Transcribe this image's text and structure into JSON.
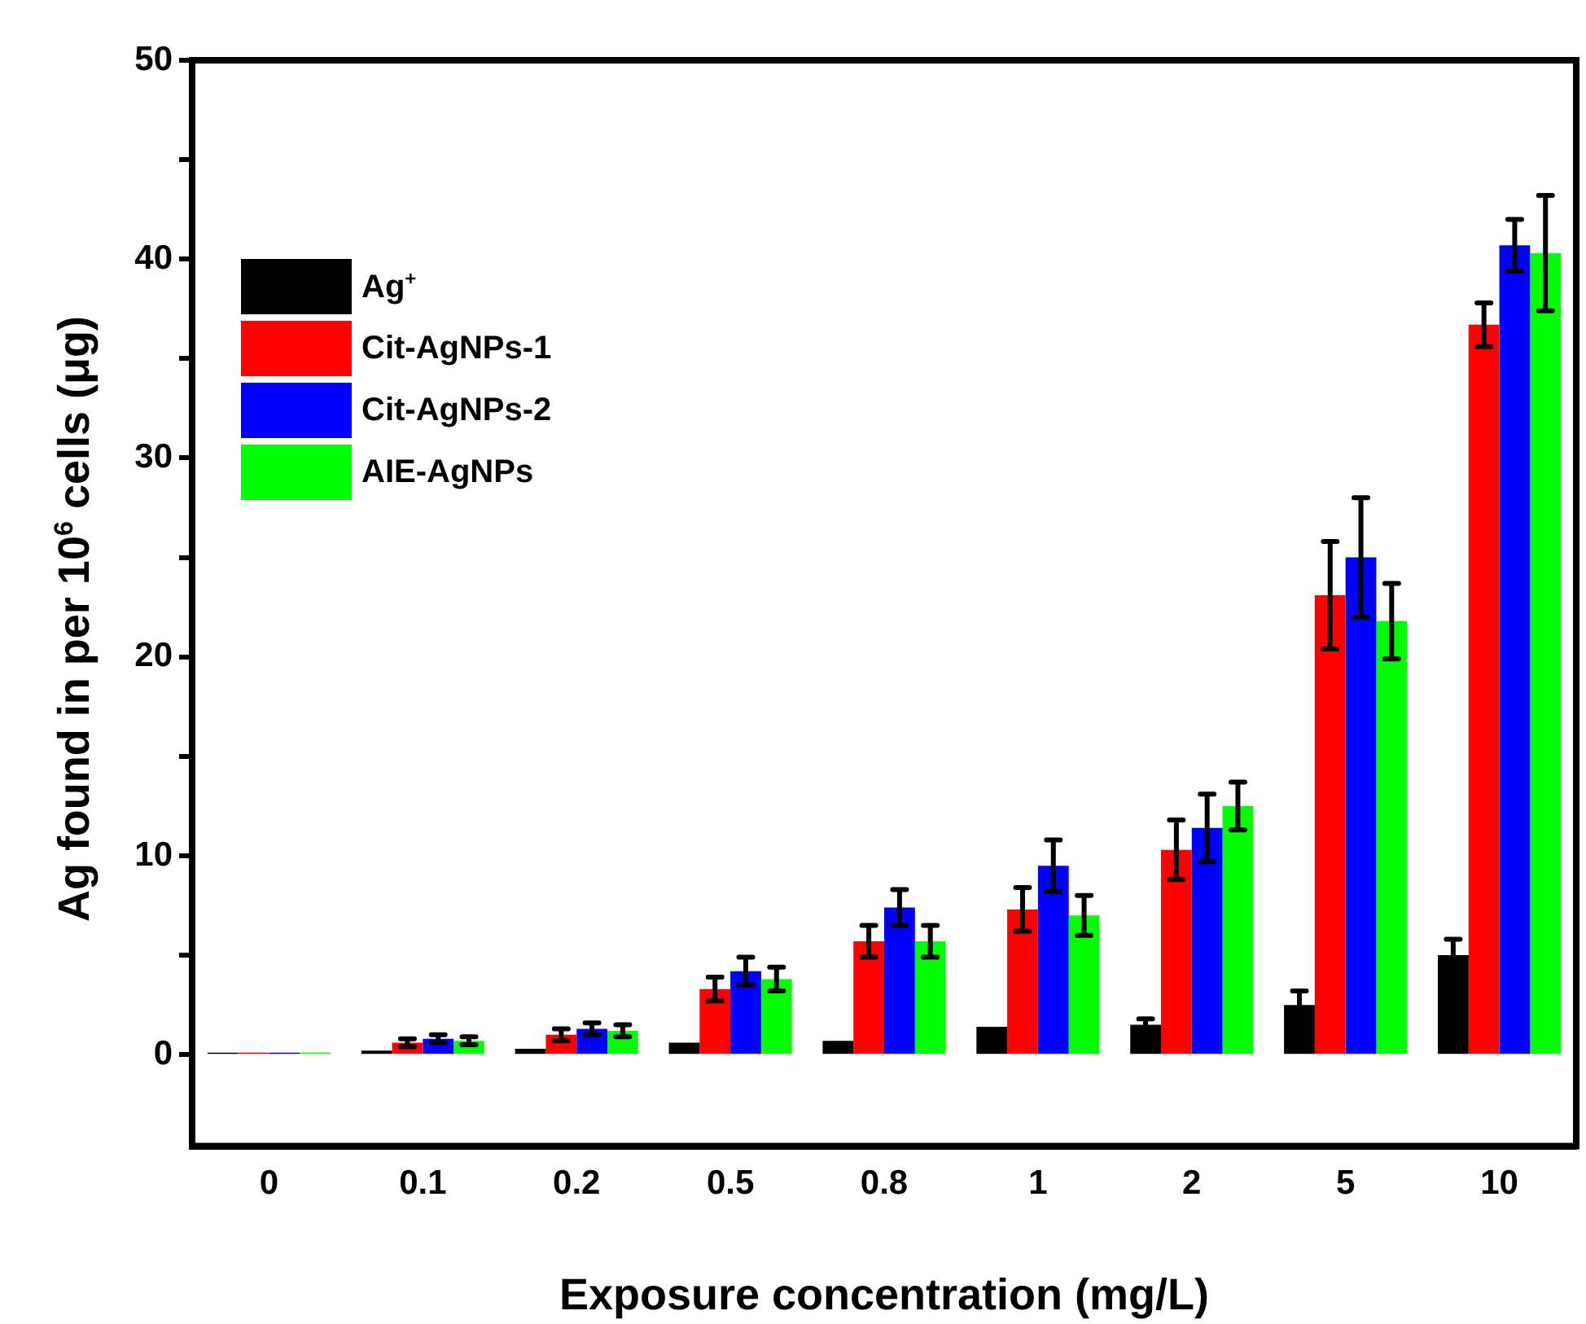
{
  "chart_data": {
    "type": "bar",
    "xlabel": "Exposure concentration (mg/L)",
    "ylabel": "Ag found in per 10$^{6}$ cells (μg)",
    "categories": [
      "0",
      "0.1",
      "0.2",
      "0.5",
      "0.8",
      "1",
      "2",
      "5",
      "10"
    ],
    "ylim": [
      -4.6,
      50
    ],
    "yticks": [
      0,
      {
        "value": 5,
        "label": null
      },
      10,
      {
        "value": 15,
        "label": null
      },
      20,
      {
        "value": 25,
        "label": null
      },
      30,
      {
        "value": 35,
        "label": null
      },
      40,
      {
        "value": 45,
        "label": null
      },
      50
    ],
    "grid": false,
    "legend": "top left",
    "series": [
      {
        "name": "Ag$^{+}$",
        "color": "#000000",
        "values": [
          0.1,
          0.2,
          0.3,
          0.6,
          0.7,
          1.4,
          1.5,
          2.5,
          5.0
        ],
        "errors": [
          null,
          null,
          null,
          null,
          null,
          null,
          0.3,
          0.7,
          0.8
        ]
      },
      {
        "name": "Cit-AgNPs-1",
        "color": "#ff0000",
        "values": [
          0.1,
          0.6,
          1.0,
          3.3,
          5.7,
          7.3,
          10.3,
          23.1,
          36.7
        ],
        "errors": [
          null,
          0.2,
          0.3,
          0.6,
          0.8,
          1.1,
          1.5,
          2.7,
          1.1
        ]
      },
      {
        "name": "Cit-AgNPs-2",
        "color": "#0000ff",
        "values": [
          0.1,
          0.8,
          1.3,
          4.2,
          7.4,
          9.5,
          11.4,
          25.0,
          40.7
        ],
        "errors": [
          null,
          0.2,
          0.3,
          0.7,
          0.9,
          1.3,
          1.7,
          3.0,
          1.3
        ]
      },
      {
        "name": "AIE-AgNPs",
        "color": "#00ff00",
        "values": [
          0.1,
          0.7,
          1.2,
          3.8,
          5.7,
          7.0,
          12.5,
          21.8,
          40.3
        ],
        "errors": [
          null,
          0.2,
          0.3,
          0.6,
          0.8,
          1.0,
          1.2,
          1.9,
          2.9
        ]
      }
    ]
  }
}
